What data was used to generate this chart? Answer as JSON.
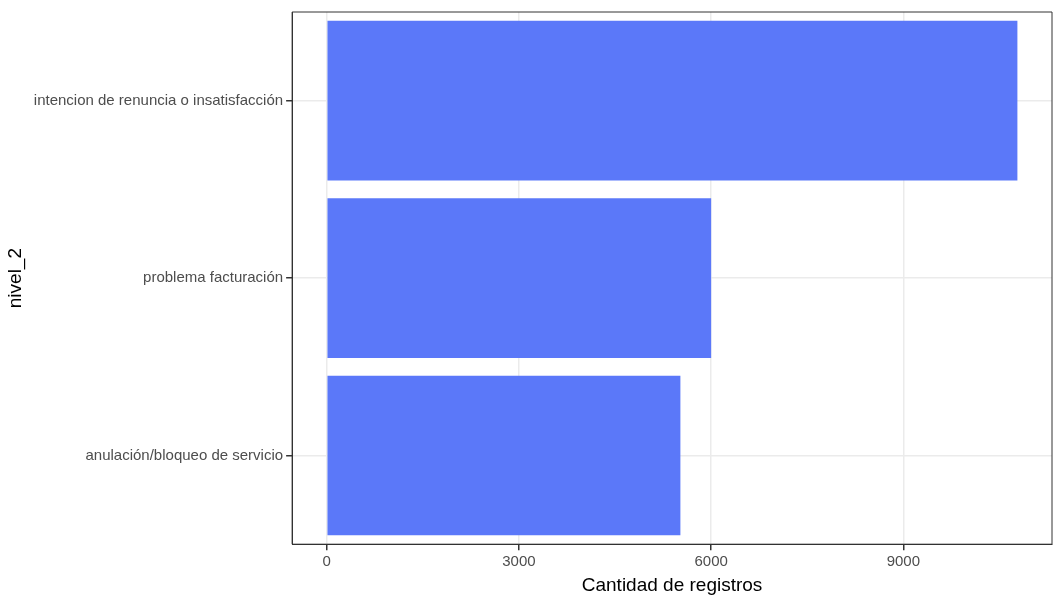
{
  "chart_data": {
    "type": "bar",
    "orientation": "horizontal",
    "xlabel": "Cantidad de registros",
    "ylabel": "nivel_2",
    "categories": [
      "intencion de renuncia o insatisfacción",
      "problema facturación",
      "anulación/bloqueo de servicio"
    ],
    "values": [
      10780,
      6000,
      5520
    ],
    "color": "#5b78f9",
    "xlim": [
      -540,
      11320
    ],
    "xticks": [
      0,
      3000,
      6000,
      9000
    ],
    "grid": true,
    "legend": false
  }
}
